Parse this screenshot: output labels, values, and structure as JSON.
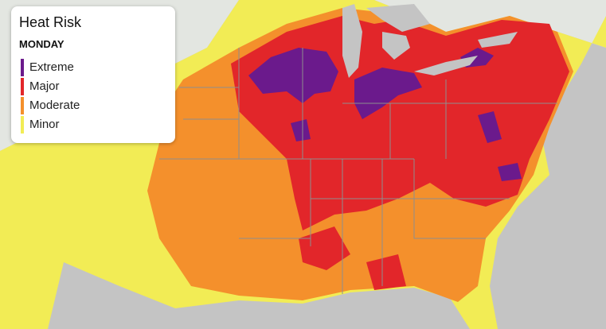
{
  "legend": {
    "title": "Heat Risk",
    "subtitle": "MONDAY",
    "items": [
      {
        "label": "Extreme",
        "color": "#6b1a8c"
      },
      {
        "label": "Major",
        "color": "#e2262a"
      },
      {
        "label": "Moderate",
        "color": "#f4902c"
      },
      {
        "label": "Minor",
        "color": "#f2ec55"
      }
    ]
  }
}
